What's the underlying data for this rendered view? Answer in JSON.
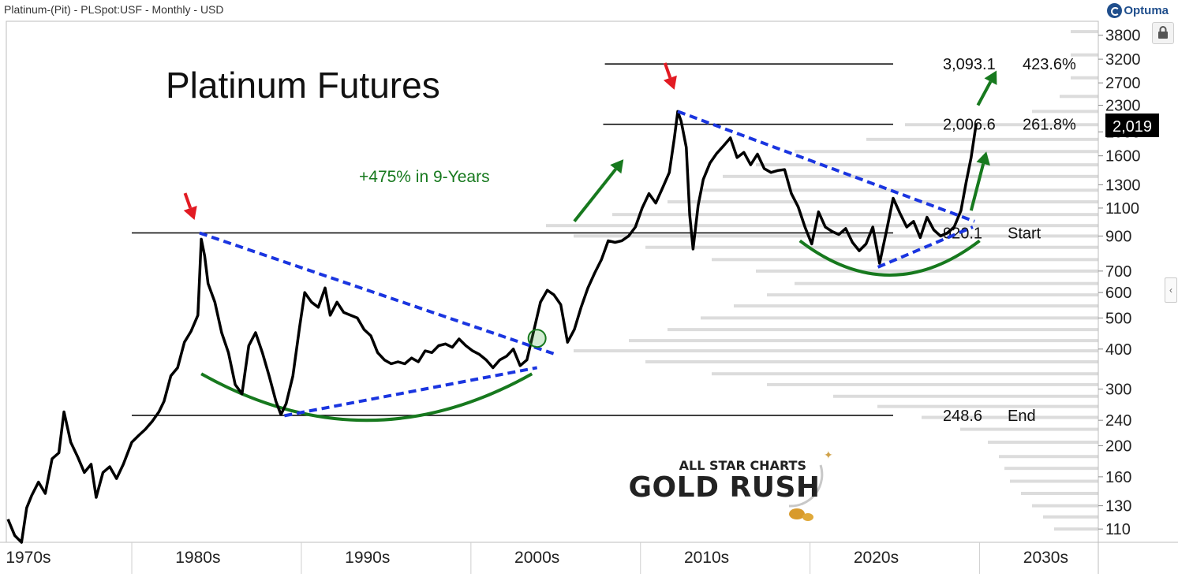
{
  "header": {
    "title": "Platinum-(Pit) - PLSpot:USF - Monthly - USD",
    "brand": "Optuma"
  },
  "watermark": {
    "line1": "ALL STAR CHARTS",
    "line2": "GOLD RUSH"
  },
  "colors": {
    "price": "#000000",
    "trendline": "#1a35e0",
    "arc": "#17791e",
    "arrow_red": "#e21b23",
    "arrow_green": "#17791e",
    "volume_profile": "#dcdcdc",
    "level_line": "#000000"
  },
  "icons": [
    "optuma-logo-icon",
    "lock-icon",
    "chevron-left-icon",
    "red-arrow-icon",
    "green-arrow-icon",
    "gold-nugget-icon",
    "breakout-circle-icon"
  ],
  "chart_data": {
    "type": "line",
    "title": "Platinum Futures",
    "annotation": "+475% in 9-Years",
    "y_scale": "log",
    "ylim": [
      100,
      4200
    ],
    "xlim": [
      1968.7,
      2033.1
    ],
    "y_ticks": [
      "3800",
      "3200",
      "2700",
      "2300",
      "1900",
      "1600",
      "1300",
      "1100",
      "900",
      "700",
      "600",
      "500",
      "400",
      "300",
      "240",
      "200",
      "160",
      "130",
      "110"
    ],
    "x_ticks": [
      {
        "label": "1970s",
        "year": 1970
      },
      {
        "label": "1980s",
        "year": 1980
      },
      {
        "label": "1990s",
        "year": 1990
      },
      {
        "label": "2000s",
        "year": 2000
      },
      {
        "label": "2010s",
        "year": 2010
      },
      {
        "label": "2020s",
        "year": 2020
      },
      {
        "label": "2030s",
        "year": 2030
      }
    ],
    "last_price": "2,019",
    "levels": [
      {
        "value": 3093.1,
        "label": "3,093.1",
        "pct": "423.6%",
        "x_start": 2004.0,
        "x_end": 2021.0
      },
      {
        "value": 2006.6,
        "label": "2,006.6",
        "pct": "261.8%",
        "x_start": 2003.9,
        "x_end": 2021.0
      },
      {
        "value": 920.1,
        "label": "920.1",
        "pct": "Start",
        "x_start": 1976.1,
        "x_end": 2021.0
      },
      {
        "value": 248.6,
        "label": "248.6",
        "pct": "End",
        "x_start": 1976.1,
        "x_end": 2021.0
      }
    ],
    "series": [
      {
        "name": "Platinum",
        "points": [
          [
            1968.8,
            118
          ],
          [
            1969.2,
            105
          ],
          [
            1969.6,
            100
          ],
          [
            1969.9,
            128
          ],
          [
            1970.2,
            140
          ],
          [
            1970.6,
            154
          ],
          [
            1971.0,
            142
          ],
          [
            1971.4,
            182
          ],
          [
            1971.8,
            190
          ],
          [
            1972.1,
            255
          ],
          [
            1972.5,
            205
          ],
          [
            1972.9,
            185
          ],
          [
            1973.3,
            165
          ],
          [
            1973.7,
            175
          ],
          [
            1974.0,
            138
          ],
          [
            1974.4,
            165
          ],
          [
            1974.8,
            172
          ],
          [
            1975.2,
            158
          ],
          [
            1975.6,
            175
          ],
          [
            1976.1,
            205
          ],
          [
            1976.5,
            215
          ],
          [
            1976.9,
            225
          ],
          [
            1977.3,
            238
          ],
          [
            1977.7,
            255
          ],
          [
            1978.0,
            275
          ],
          [
            1978.4,
            330
          ],
          [
            1978.8,
            350
          ],
          [
            1979.2,
            420
          ],
          [
            1979.6,
            455
          ],
          [
            1980.0,
            510
          ],
          [
            1980.2,
            880
          ],
          [
            1980.4,
            780
          ],
          [
            1980.6,
            640
          ],
          [
            1981.0,
            560
          ],
          [
            1981.4,
            450
          ],
          [
            1981.8,
            390
          ],
          [
            1982.2,
            310
          ],
          [
            1982.6,
            290
          ],
          [
            1983.0,
            410
          ],
          [
            1983.4,
            450
          ],
          [
            1983.8,
            390
          ],
          [
            1984.2,
            330
          ],
          [
            1984.6,
            275
          ],
          [
            1984.9,
            250
          ],
          [
            1985.2,
            270
          ],
          [
            1985.6,
            330
          ],
          [
            1986.0,
            470
          ],
          [
            1986.3,
            600
          ],
          [
            1986.7,
            560
          ],
          [
            1987.1,
            540
          ],
          [
            1987.5,
            620
          ],
          [
            1987.8,
            510
          ],
          [
            1988.2,
            560
          ],
          [
            1988.6,
            520
          ],
          [
            1989.0,
            510
          ],
          [
            1989.4,
            500
          ],
          [
            1989.8,
            460
          ],
          [
            1990.2,
            440
          ],
          [
            1990.6,
            390
          ],
          [
            1991.0,
            370
          ],
          [
            1991.4,
            360
          ],
          [
            1991.8,
            365
          ],
          [
            1992.2,
            360
          ],
          [
            1992.6,
            375
          ],
          [
            1993.0,
            365
          ],
          [
            1993.4,
            395
          ],
          [
            1993.8,
            390
          ],
          [
            1994.2,
            410
          ],
          [
            1994.6,
            415
          ],
          [
            1995.0,
            405
          ],
          [
            1995.4,
            430
          ],
          [
            1995.8,
            410
          ],
          [
            1996.2,
            395
          ],
          [
            1996.6,
            385
          ],
          [
            1997.0,
            370
          ],
          [
            1997.4,
            350
          ],
          [
            1997.8,
            370
          ],
          [
            1998.2,
            380
          ],
          [
            1998.6,
            400
          ],
          [
            1999.0,
            355
          ],
          [
            1999.4,
            370
          ],
          [
            1999.8,
            455
          ],
          [
            2000.2,
            560
          ],
          [
            2000.6,
            610
          ],
          [
            2001.0,
            590
          ],
          [
            2001.4,
            550
          ],
          [
            2001.8,
            420
          ],
          [
            2002.2,
            460
          ],
          [
            2002.6,
            540
          ],
          [
            2003.0,
            620
          ],
          [
            2003.4,
            690
          ],
          [
            2003.8,
            760
          ],
          [
            2004.2,
            870
          ],
          [
            2004.6,
            860
          ],
          [
            2005.0,
            870
          ],
          [
            2005.4,
            900
          ],
          [
            2005.8,
            960
          ],
          [
            2006.2,
            1100
          ],
          [
            2006.6,
            1220
          ],
          [
            2007.0,
            1140
          ],
          [
            2007.4,
            1270
          ],
          [
            2007.8,
            1420
          ],
          [
            2008.1,
            1820
          ],
          [
            2008.3,
            2200
          ],
          [
            2008.5,
            2050
          ],
          [
            2008.8,
            1700
          ],
          [
            2009.0,
            1050
          ],
          [
            2009.2,
            820
          ],
          [
            2009.5,
            1120
          ],
          [
            2009.8,
            1350
          ],
          [
            2010.2,
            1520
          ],
          [
            2010.6,
            1630
          ],
          [
            2011.0,
            1720
          ],
          [
            2011.4,
            1820
          ],
          [
            2011.8,
            1580
          ],
          [
            2012.2,
            1640
          ],
          [
            2012.6,
            1500
          ],
          [
            2013.0,
            1620
          ],
          [
            2013.4,
            1460
          ],
          [
            2013.8,
            1420
          ],
          [
            2014.2,
            1440
          ],
          [
            2014.6,
            1450
          ],
          [
            2015.0,
            1220
          ],
          [
            2015.4,
            1110
          ],
          [
            2015.8,
            960
          ],
          [
            2016.2,
            850
          ],
          [
            2016.6,
            1070
          ],
          [
            2017.0,
            960
          ],
          [
            2017.4,
            930
          ],
          [
            2017.8,
            910
          ],
          [
            2018.2,
            950
          ],
          [
            2018.6,
            860
          ],
          [
            2019.0,
            810
          ],
          [
            2019.4,
            850
          ],
          [
            2019.8,
            960
          ],
          [
            2020.2,
            740
          ],
          [
            2020.6,
            930
          ],
          [
            2021.0,
            1180
          ],
          [
            2021.4,
            1060
          ],
          [
            2021.8,
            960
          ],
          [
            2022.2,
            1000
          ],
          [
            2022.6,
            890
          ],
          [
            2023.0,
            1030
          ],
          [
            2023.4,
            940
          ],
          [
            2023.8,
            900
          ],
          [
            2024.2,
            920
          ],
          [
            2024.6,
            960
          ],
          [
            2025.0,
            1080
          ],
          [
            2025.3,
            1320
          ],
          [
            2025.6,
            1580
          ],
          [
            2025.9,
            2019
          ]
        ]
      }
    ],
    "trendlines": [
      {
        "name": "upper-1980-2000",
        "from": [
          1980.1,
          920
        ],
        "to": [
          2001.1,
          385
        ]
      },
      {
        "name": "lower-1985-2000",
        "from": [
          1985.1,
          248
        ],
        "to": [
          2000.0,
          350
        ]
      },
      {
        "name": "upper-2008-2026",
        "from": [
          2008.3,
          2200
        ],
        "to": [
          2025.8,
          1000
        ]
      },
      {
        "name": "lower-2020-2026",
        "from": [
          2020.1,
          720
        ],
        "to": [
          2025.7,
          960
        ]
      }
    ],
    "arcs": [
      {
        "name": "base-1980s-1990s",
        "from": [
          1980.2,
          335
        ],
        "to": [
          1999.7,
          335
        ],
        "bottom": 240
      },
      {
        "name": "base-2010s-2020s",
        "from": [
          2015.5,
          870
        ],
        "to": [
          2026.1,
          870
        ],
        "bottom": 680
      }
    ],
    "volume_profile": [
      [
        3900,
        0.05
      ],
      [
        3300,
        0.05
      ],
      [
        2800,
        0.05
      ],
      [
        2450,
        0.07
      ],
      [
        2200,
        0.12
      ],
      [
        2000,
        0.35
      ],
      [
        1800,
        0.42
      ],
      [
        1650,
        0.55
      ],
      [
        1500,
        0.62
      ],
      [
        1380,
        0.68
      ],
      [
        1250,
        0.72
      ],
      [
        1150,
        0.78
      ],
      [
        1050,
        0.88
      ],
      [
        970,
        1.0
      ],
      [
        900,
        0.95
      ],
      [
        830,
        0.82
      ],
      [
        760,
        0.7
      ],
      [
        700,
        0.62
      ],
      [
        640,
        0.55
      ],
      [
        590,
        0.6
      ],
      [
        545,
        0.66
      ],
      [
        500,
        0.72
      ],
      [
        460,
        0.78
      ],
      [
        425,
        0.85
      ],
      [
        395,
        0.95
      ],
      [
        365,
        0.82
      ],
      [
        335,
        0.7
      ],
      [
        310,
        0.6
      ],
      [
        285,
        0.48
      ],
      [
        265,
        0.4
      ],
      [
        245,
        0.32
      ],
      [
        225,
        0.25
      ],
      [
        205,
        0.2
      ],
      [
        185,
        0.18
      ],
      [
        170,
        0.17
      ],
      [
        155,
        0.16
      ],
      [
        142,
        0.14
      ],
      [
        130,
        0.12
      ],
      [
        120,
        0.1
      ],
      [
        110,
        0.08
      ]
    ],
    "red_arrows": [
      [
        1979.8,
        1010
      ],
      [
        2008.1,
        2570
      ]
    ],
    "green_arrows": [
      {
        "from": [
          2002.2,
          1000
        ],
        "to": [
          2005.1,
          1560
        ]
      },
      {
        "from": [
          2025.6,
          1080
        ],
        "to": [
          2026.5,
          1650
        ]
      },
      {
        "from": [
          2026.0,
          2300
        ],
        "to": [
          2027.1,
          2950
        ]
      }
    ],
    "breakout_circle": [
      2000.0,
      432
    ],
    "grid": false,
    "legend": "none"
  }
}
